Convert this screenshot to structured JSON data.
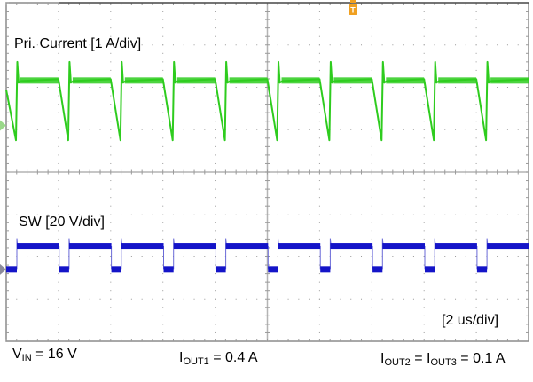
{
  "chart_data": {
    "type": "line",
    "title": "",
    "xlabel": "",
    "ylabel": "",
    "grid": true,
    "divisions": {
      "horizontal": 10,
      "vertical": 8
    },
    "timebase": "[2 us/div]",
    "series": [
      {
        "name": "Pri. Current",
        "label": "Pri. Current [1 A/div]",
        "scale": "1 A/div",
        "color": "#2ecc1e",
        "waveform": "sawtooth-recovery",
        "period_us": 2.0,
        "high_div_from_top": 1.85,
        "spike_div_from_top": 1.4,
        "trough_div_from_top": 3.25,
        "cycles_visible": 10
      },
      {
        "name": "SW",
        "label": "SW [20 V/div]",
        "scale": "20 V/div",
        "color": "#1414c8",
        "waveform": "square",
        "period_us": 2.0,
        "high_div_from_top": 5.75,
        "low_div_from_top": 6.3,
        "low_duty": 0.19,
        "cycles_visible": 10
      }
    ],
    "annotations": {
      "vin": {
        "main": "V",
        "sub": "IN",
        "rest": " = 16 V"
      },
      "iout1": {
        "main": "I",
        "sub": "OUT1",
        "rest": " = 0.4 A"
      },
      "iout23": {
        "main1": "I",
        "sub1": "OUT2",
        "mid": " = ",
        "main2": "I",
        "sub2": "OUT3",
        "rest": " = 0.1 A"
      }
    },
    "trigger_marker": {
      "label": "T",
      "color": "#f0a020"
    }
  },
  "labels": {
    "ch1": "Pri. Current [1 A/div]",
    "ch2": "SW [20 V/div]",
    "timebase": "[2 us/div]"
  }
}
